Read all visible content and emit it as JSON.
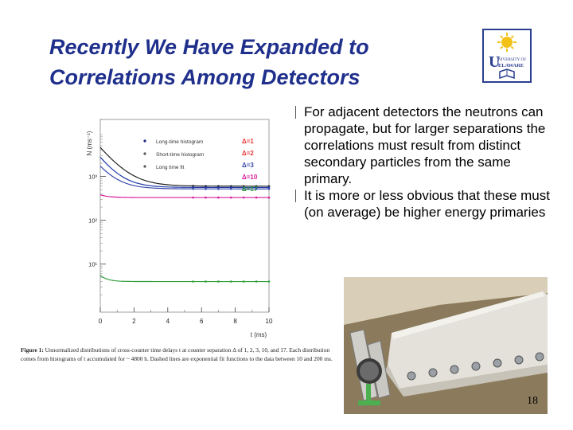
{
  "slide": {
    "title_line1": "Recently We Have Expanded to",
    "title_line2": "Correlations Among Detectors",
    "logo_text": "UNIVERSITY OF DELAWARE",
    "page_number": "18"
  },
  "bullets": [
    "For adjacent detectors the neutrons can propagate, but for larger separations the correlations must result from distinct secondary particles from the same primary.",
    "It is more or less obvious that these must (on average) be higher energy primaries"
  ],
  "caption": {
    "label": "Figure 1:",
    "text": "Unnormalized distributions of cross-counter time delays t at counter separation Δ of 1, 2, 3, 10, and 17. Each distribution comes from histograms of t accumulated for ~ 4800 h. Dashed lines are exponential fit functions to the data between 10 and 200 ms."
  },
  "chart_data": {
    "type": "line",
    "xlabel": "t (ms)",
    "ylabel": "N (ms⁻¹)",
    "xlim": [
      0,
      10
    ],
    "x_ticks": [
      "0",
      "2",
      "4",
      "6",
      "8",
      "10"
    ],
    "y_log": true,
    "ylim": [
      0.8,
      20000
    ],
    "y_ticks": [
      {
        "label": "10³",
        "value": 1000
      },
      {
        "label": "10²",
        "value": 100
      },
      {
        "label": "10¹",
        "value": 10
      }
    ],
    "legend_markers": [
      {
        "label": "Long-time histogram",
        "color": "#1a237e"
      },
      {
        "label": "Short-time histogram",
        "color": "#555555"
      },
      {
        "label": "Long time fit",
        "color": "#555555"
      }
    ],
    "series": [
      {
        "name": "Δ=1",
        "color": "#222222",
        "label_color": "#e53935",
        "base": 600,
        "amp": 4000,
        "tau": 0.9
      },
      {
        "name": "Δ=2",
        "color": "#1e3aa8",
        "label_color": "#e53935",
        "base": 560,
        "amp": 2200,
        "tau": 0.8
      },
      {
        "name": "Δ=3",
        "color": "#3949ab",
        "label_color": "#3949ab",
        "base": 520,
        "amp": 1200,
        "tau": 0.8
      },
      {
        "name": "Δ=10",
        "color": "#d81b9a",
        "label_color": "#d81b9a",
        "base": 330,
        "amp": 50,
        "tau": 0.5
      },
      {
        "name": "Δ=17",
        "color": "#2e9e3a",
        "label_color": "#2e9e3a",
        "base": 4,
        "amp": 1.5,
        "tau": 0.4
      }
    ]
  },
  "colors": {
    "title": "#1f2f8c"
  }
}
